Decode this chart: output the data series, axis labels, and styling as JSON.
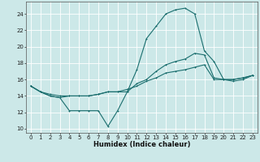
{
  "xlabel": "Humidex (Indice chaleur)",
  "xlim": [
    -0.5,
    23.5
  ],
  "ylim": [
    9.5,
    25.5
  ],
  "yticks": [
    10,
    12,
    14,
    16,
    18,
    20,
    22,
    24
  ],
  "xticks": [
    0,
    1,
    2,
    3,
    4,
    5,
    6,
    7,
    8,
    9,
    10,
    11,
    12,
    13,
    14,
    15,
    16,
    17,
    18,
    19,
    20,
    21,
    22,
    23
  ],
  "bg_color": "#cce8e8",
  "line_color": "#1a6e6e",
  "grid_color": "#ffffff",
  "line1_x": [
    0,
    1,
    2,
    3,
    4,
    5,
    6,
    7,
    8,
    9,
    10,
    11,
    12,
    13,
    14,
    15,
    16,
    17,
    18,
    19,
    20,
    21,
    22,
    23
  ],
  "line1_y": [
    15.2,
    14.5,
    14.0,
    13.8,
    12.2,
    12.2,
    12.2,
    12.2,
    10.3,
    12.2,
    14.5,
    17.2,
    21.0,
    22.5,
    24.0,
    24.5,
    24.7,
    24.0,
    19.5,
    18.2,
    16.0,
    15.8,
    16.0,
    16.5
  ],
  "line2_x": [
    0,
    1,
    2,
    3,
    4,
    5,
    6,
    7,
    8,
    9,
    10,
    11,
    12,
    13,
    14,
    15,
    16,
    17,
    18,
    19,
    20,
    21,
    22,
    23
  ],
  "line2_y": [
    15.2,
    14.5,
    14.0,
    13.8,
    14.0,
    14.0,
    14.0,
    14.2,
    14.5,
    14.5,
    14.5,
    15.5,
    16.0,
    17.0,
    17.8,
    18.2,
    18.5,
    19.2,
    19.0,
    16.2,
    16.0,
    16.0,
    16.2,
    16.5
  ],
  "line3_x": [
    0,
    1,
    2,
    3,
    4,
    5,
    6,
    7,
    8,
    9,
    10,
    11,
    12,
    13,
    14,
    15,
    16,
    17,
    18,
    19,
    20,
    21,
    22,
    23
  ],
  "line3_y": [
    15.2,
    14.5,
    14.2,
    14.0,
    14.0,
    14.0,
    14.0,
    14.2,
    14.5,
    14.5,
    14.8,
    15.2,
    15.8,
    16.2,
    16.8,
    17.0,
    17.2,
    17.5,
    17.8,
    16.0,
    16.0,
    16.0,
    16.2,
    16.5
  ],
  "xlabel_fontsize": 6.0,
  "tick_fontsize": 5.0,
  "linewidth": 0.8,
  "marker_size": 2.0
}
